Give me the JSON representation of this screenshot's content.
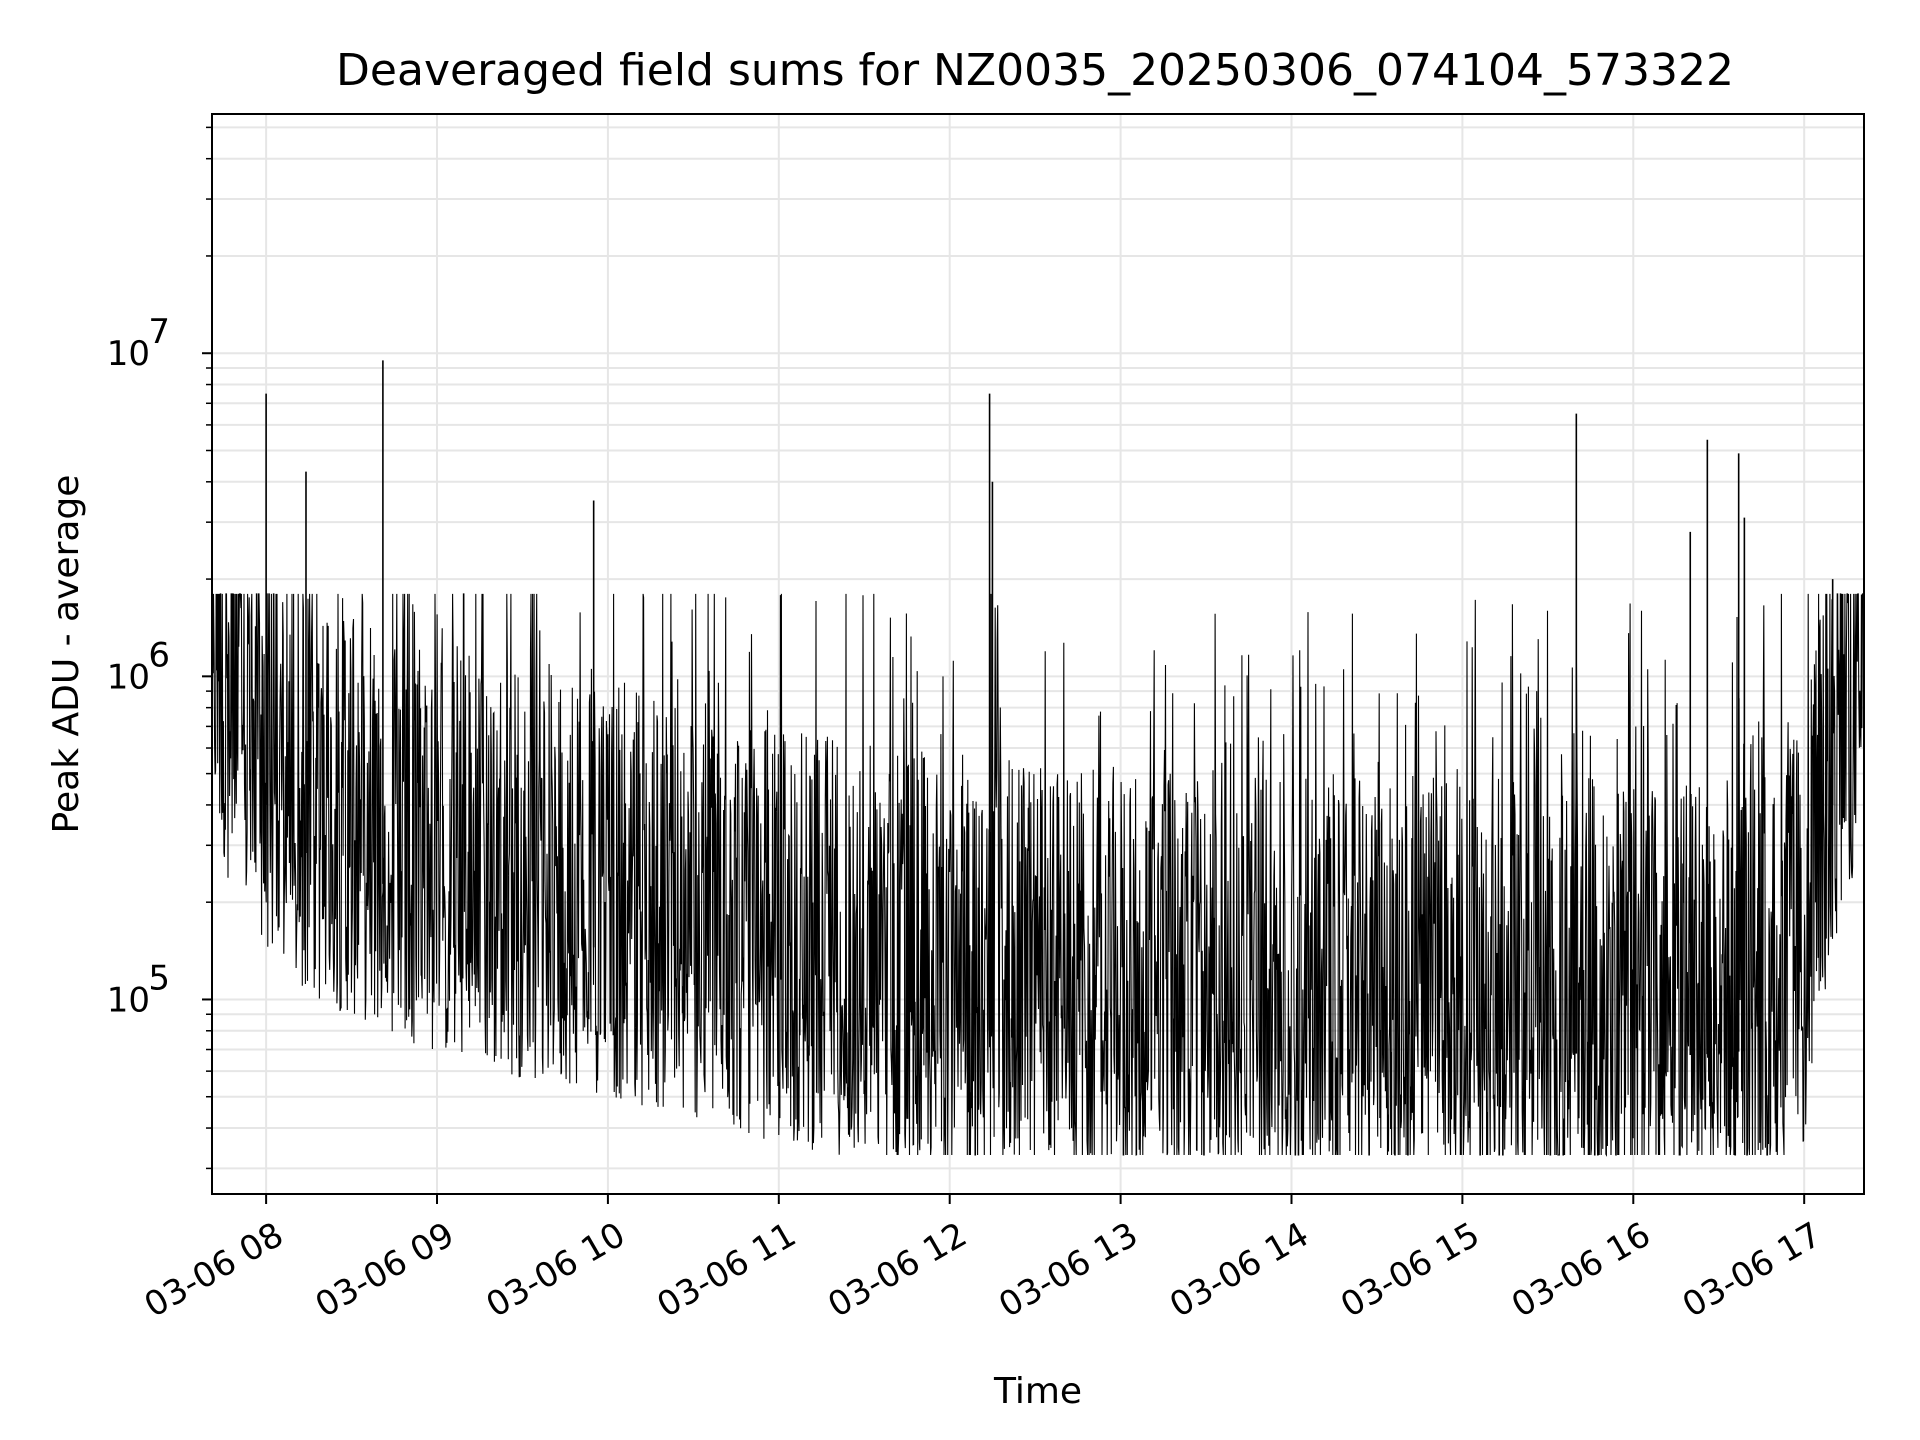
{
  "chart_data": {
    "type": "line",
    "title": "Deaveraged field sums for NZ0035_20250306_074104_573322",
    "xlabel": "Time",
    "ylabel": "Peak ADU - average",
    "y_scale": "log",
    "ylim": [
      25000,
      55000000
    ],
    "xlim": [
      "03-06 07:41",
      "03-06 17:21"
    ],
    "x_tick_labels": [
      "03-06 08",
      "03-06 09",
      "03-06 10",
      "03-06 11",
      "03-06 12",
      "03-06 13",
      "03-06 14",
      "03-06 15",
      "03-06 16",
      "03-06 17"
    ],
    "y_tick_labels": [
      {
        "base": "10",
        "exp": "5",
        "value": 100000
      },
      {
        "base": "10",
        "exp": "6",
        "value": 1000000
      },
      {
        "base": "10",
        "exp": "7",
        "value": 10000000
      }
    ],
    "grid": true,
    "line_color": "#000000",
    "series": [
      {
        "x": [
          "03-06 07:41",
          "03-06 07:45",
          "03-06 07:50",
          "03-06 07:55",
          "03-06 08:00",
          "03-06 08:05",
          "03-06 08:10",
          "03-06 08:15",
          "03-06 08:20",
          "03-06 08:25",
          "03-06 08:30",
          "03-06 08:35",
          "03-06 08:40",
          "03-06 08:45",
          "03-06 08:50",
          "03-06 08:55",
          "03-06 09:00",
          "03-06 09:10",
          "03-06 09:20",
          "03-06 09:30",
          "03-06 09:40",
          "03-06 09:50",
          "03-06 10:00",
          "03-06 10:15",
          "03-06 10:30",
          "03-06 10:45",
          "03-06 11:00",
          "03-06 11:15",
          "03-06 11:30",
          "03-06 11:45",
          "03-06 12:00",
          "03-06 12:15",
          "03-06 12:30",
          "03-06 12:45",
          "03-06 13:00",
          "03-06 13:15",
          "03-06 13:30",
          "03-06 13:45",
          "03-06 14:00",
          "03-06 14:15",
          "03-06 14:30",
          "03-06 14:45",
          "03-06 15:00",
          "03-06 15:15",
          "03-06 15:30",
          "03-06 15:45",
          "03-06 16:00",
          "03-06 16:15",
          "03-06 16:30",
          "03-06 16:45",
          "03-06 17:00",
          "03-06 17:05",
          "03-06 17:10",
          "03-06 17:15",
          "03-06 17:21"
        ],
        "y": [
          1300000,
          700000,
          600000,
          500000,
          400000,
          350000,
          300000,
          280000,
          270000,
          260000,
          250000,
          240000,
          230000,
          220000,
          210000,
          200000,
          190000,
          180000,
          170000,
          160000,
          155000,
          150000,
          140000,
          130000,
          120000,
          110000,
          100000,
          95000,
          90000,
          85000,
          82000,
          80000,
          78000,
          76000,
          75000,
          74000,
          73000,
          72000,
          71000,
          70000,
          70000,
          69000,
          69000,
          68000,
          68000,
          68000,
          67000,
          67000,
          68000,
          70000,
          100000,
          200000,
          400000,
          600000,
          800000
        ]
      }
    ],
    "spikes": [
      {
        "x": "03-06 08:00",
        "y": 7500000
      },
      {
        "x": "03-06 08:14",
        "y": 4300000
      },
      {
        "x": "03-06 08:41",
        "y": 9500000
      },
      {
        "x": "03-06 09:55",
        "y": 3500000
      },
      {
        "x": "03-06 12:14",
        "y": 7500000
      },
      {
        "x": "03-06 12:15",
        "y": 4000000
      },
      {
        "x": "03-06 15:40",
        "y": 6500000
      },
      {
        "x": "03-06 16:20",
        "y": 2800000
      },
      {
        "x": "03-06 16:26",
        "y": 5400000
      },
      {
        "x": "03-06 16:37",
        "y": 4900000
      },
      {
        "x": "03-06 16:39",
        "y": 3100000
      },
      {
        "x": "03-06 17:10",
        "y": 2000000
      }
    ]
  }
}
